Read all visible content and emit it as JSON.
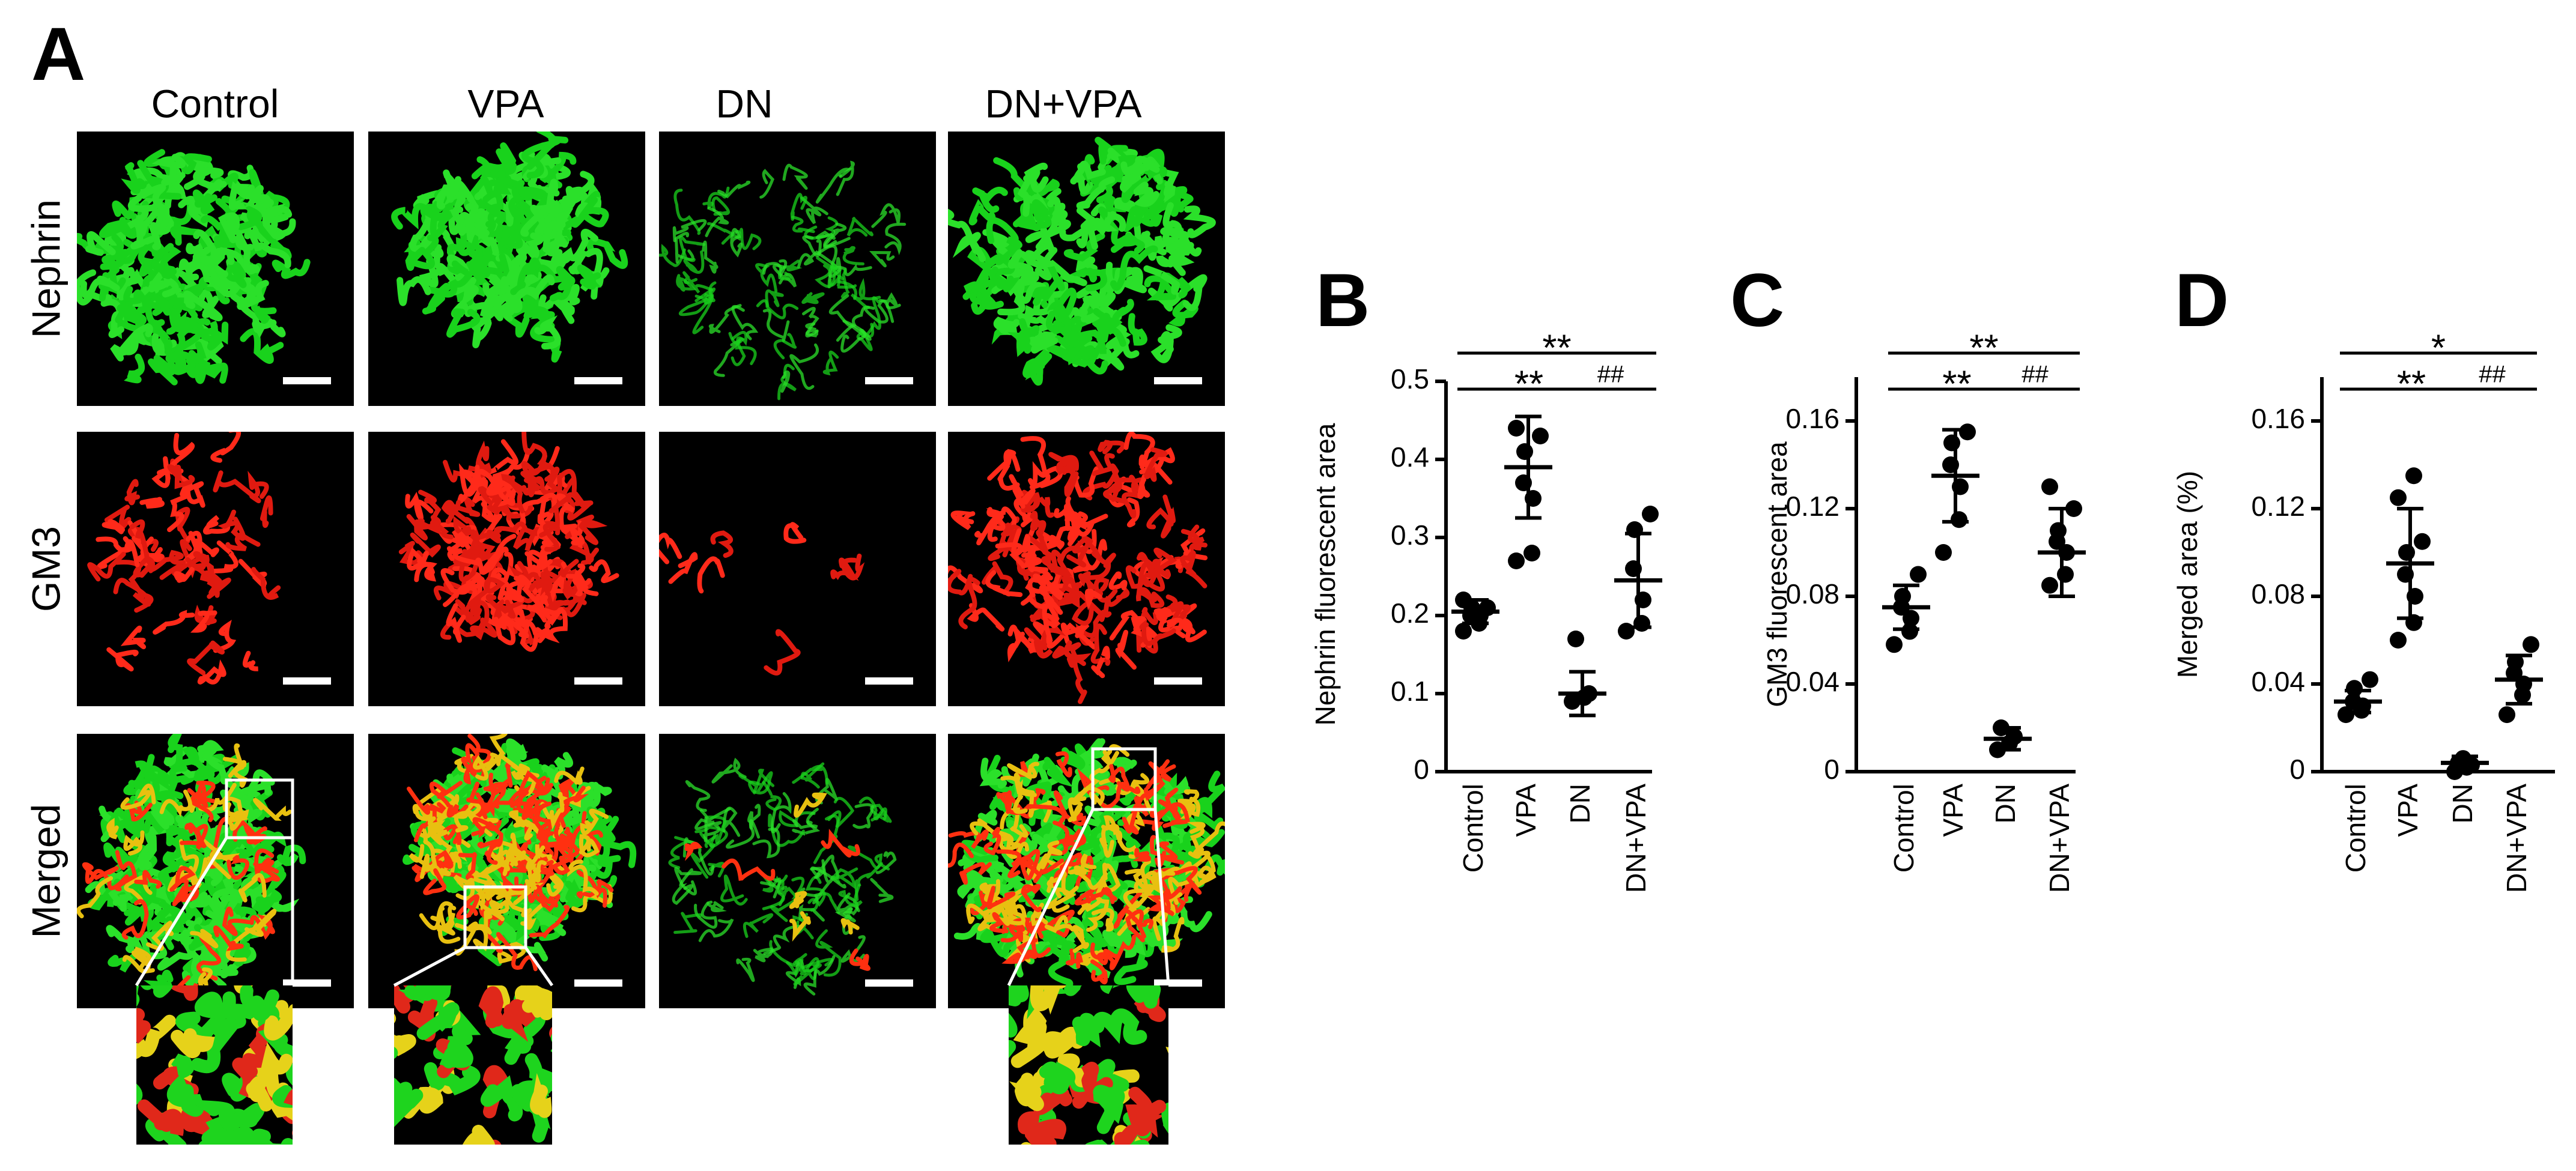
{
  "panel_a": {
    "label": "A",
    "columns": [
      "Control",
      "VPA",
      "DN",
      "DN+VPA"
    ],
    "rows": [
      "Nephrin",
      "GM3",
      "Merged"
    ]
  },
  "chart_data": [
    {
      "type": "dotplot",
      "panel_label": "B",
      "ylabel": "Nephrin fluorescent area",
      "color": "#000000",
      "categories": [
        "Control",
        "VPA",
        "DN",
        "DN+VPA"
      ],
      "values": [
        [
          0.18,
          0.19,
          0.2,
          0.2,
          0.21,
          0.21,
          0.22
        ],
        [
          0.27,
          0.28,
          0.35,
          0.37,
          0.41,
          0.43,
          0.44
        ],
        [
          0.09,
          0.095,
          0.1,
          0.17
        ],
        [
          0.18,
          0.19,
          0.22,
          0.26,
          0.31,
          0.33
        ]
      ],
      "means": [
        0.205,
        0.39,
        0.1,
        0.245
      ],
      "sd": [
        0.015,
        0.065,
        0.028,
        0.06
      ],
      "ylim": [
        0,
        0.5
      ],
      "yticks": [
        0,
        0.1,
        0.2,
        0.3,
        0.4,
        0.5
      ],
      "annotations": [
        {
          "text": "**",
          "between": [
            "Control",
            "DN+VPA"
          ]
        },
        {
          "text": "**",
          "between": [
            "Control",
            "DN"
          ]
        },
        {
          "text": "##",
          "between": [
            "DN",
            "DN+VPA"
          ]
        }
      ]
    },
    {
      "type": "dotplot",
      "panel_label": "C",
      "ylabel": "GM3 fluorescent area",
      "color": "#000000",
      "categories": [
        "Control",
        "VPA",
        "DN",
        "DN+VPA"
      ],
      "values": [
        [
          0.058,
          0.064,
          0.07,
          0.075,
          0.08,
          0.09
        ],
        [
          0.1,
          0.115,
          0.13,
          0.14,
          0.15,
          0.155
        ],
        [
          0.01,
          0.013,
          0.016,
          0.02
        ],
        [
          0.085,
          0.09,
          0.1,
          0.105,
          0.11,
          0.12,
          0.13
        ]
      ],
      "means": [
        0.075,
        0.135,
        0.015,
        0.1
      ],
      "sd": [
        0.01,
        0.021,
        0.005,
        0.02
      ],
      "ylim": [
        0,
        0.18
      ],
      "yticks": [
        0,
        0.04,
        0.08,
        0.12,
        0.16
      ],
      "annotations": [
        {
          "text": "**",
          "between": [
            "Control",
            "DN+VPA"
          ]
        },
        {
          "text": "**",
          "between": [
            "Control",
            "DN"
          ]
        },
        {
          "text": "##",
          "between": [
            "DN",
            "DN+VPA"
          ]
        }
      ]
    },
    {
      "type": "dotplot",
      "panel_label": "D",
      "ylabel": "Merged area (%)",
      "color": "#000000",
      "categories": [
        "Control",
        "VPA",
        "DN",
        "DN+VPA"
      ],
      "values": [
        [
          0.026,
          0.028,
          0.03,
          0.032,
          0.038,
          0.042
        ],
        [
          0.06,
          0.068,
          0.08,
          0.09,
          0.1,
          0.105,
          0.125,
          0.135
        ],
        [
          0,
          0.002,
          0.003,
          0.004,
          0.006
        ],
        [
          0.026,
          0.035,
          0.04,
          0.045,
          0.05,
          0.058
        ]
      ],
      "means": [
        0.032,
        0.095,
        0.004,
        0.042
      ],
      "sd": [
        0.005,
        0.025,
        0.003,
        0.011
      ],
      "ylim": [
        0,
        0.18
      ],
      "yticks": [
        0,
        0.04,
        0.08,
        0.12,
        0.16
      ],
      "annotations": [
        {
          "text": "*",
          "between": [
            "Control",
            "DN+VPA"
          ]
        },
        {
          "text": "**",
          "between": [
            "Control",
            "DN"
          ]
        },
        {
          "text": "##",
          "between": [
            "DN",
            "DN+VPA"
          ]
        }
      ]
    }
  ]
}
